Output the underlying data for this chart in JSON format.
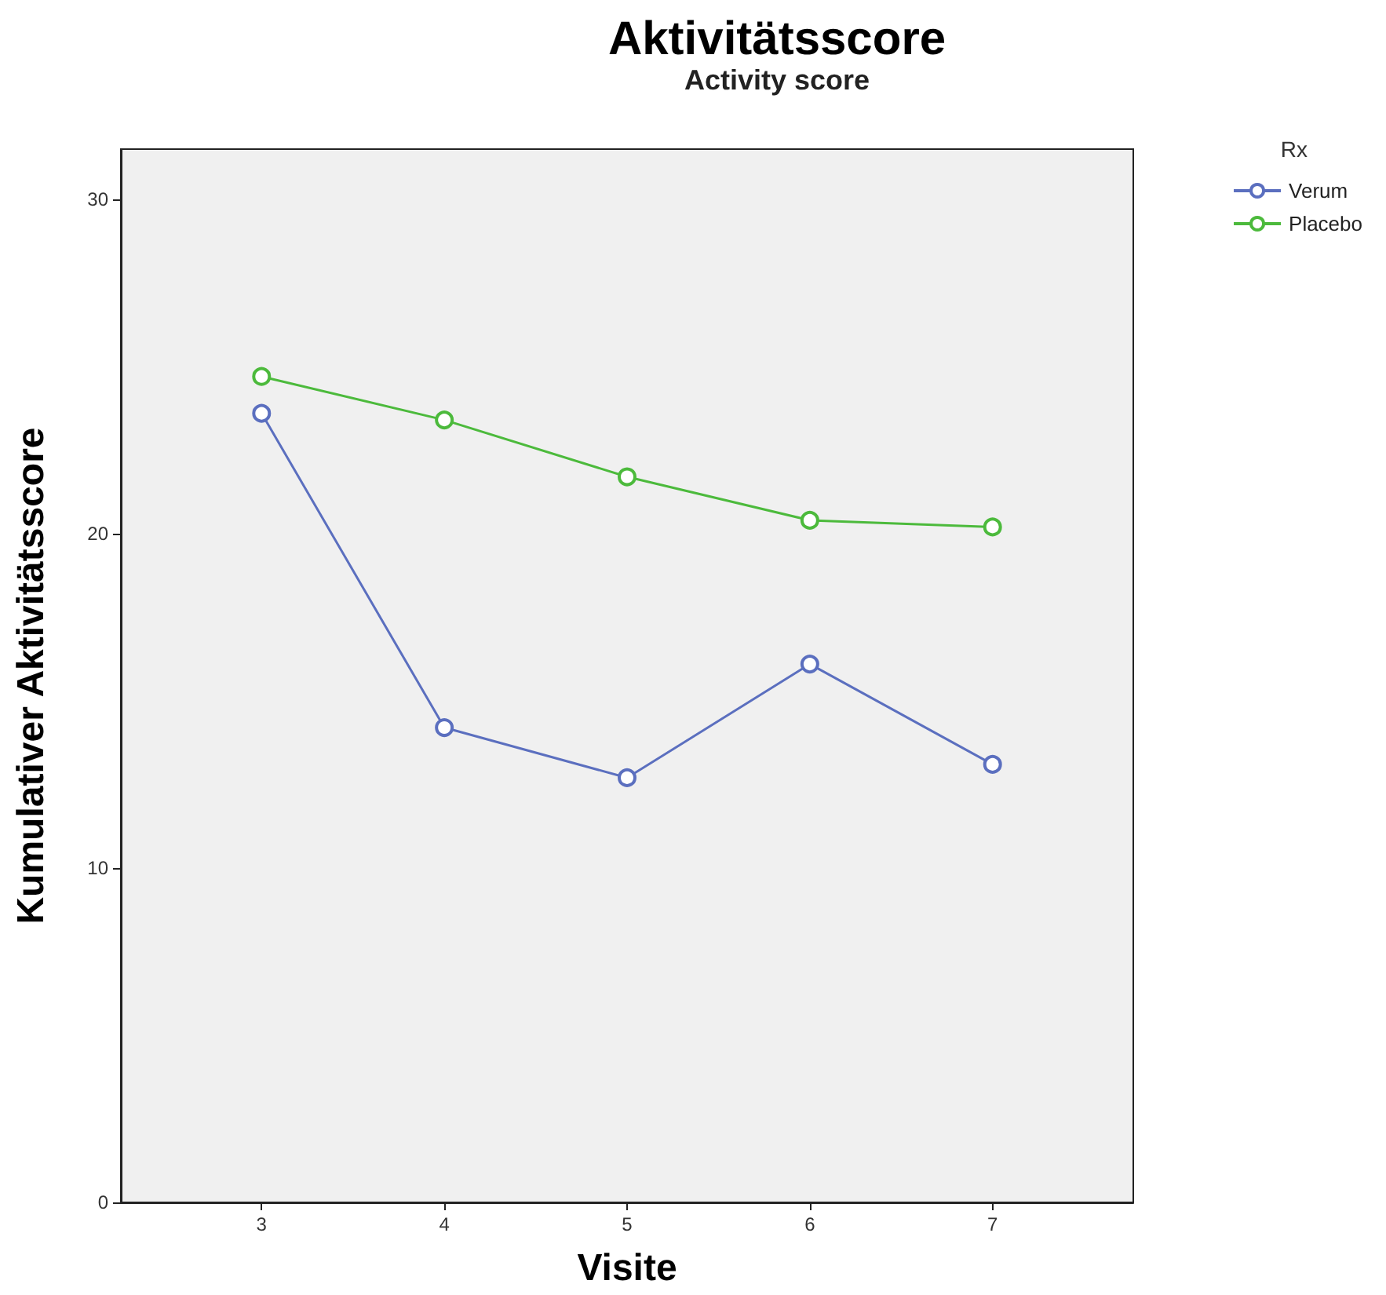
{
  "chart_data": {
    "type": "line",
    "title": "Aktivitätsscore",
    "subtitle": "Activity score",
    "xlabel": "Visite",
    "ylabel": "Kumulativer Aktivitätsscore",
    "legend_title": "Rx",
    "legend": "top right",
    "marker": "circle",
    "line_style": "solid",
    "grid": false,
    "x": [
      3,
      4,
      5,
      6,
      7
    ],
    "xlim": [
      2.23,
      7.77
    ],
    "xticks": [
      3,
      4,
      5,
      6,
      7
    ],
    "ylim": [
      0,
      31.5
    ],
    "yticks": [
      0,
      10,
      20,
      30
    ],
    "series": [
      {
        "name": "Verum",
        "color": "#5b6fbf",
        "values": [
          23.6,
          14.2,
          12.7,
          16.1,
          13.1
        ]
      },
      {
        "name": "Placebo",
        "color": "#4cba3c",
        "values": [
          24.7,
          23.4,
          21.7,
          20.4,
          20.2
        ]
      }
    ]
  }
}
